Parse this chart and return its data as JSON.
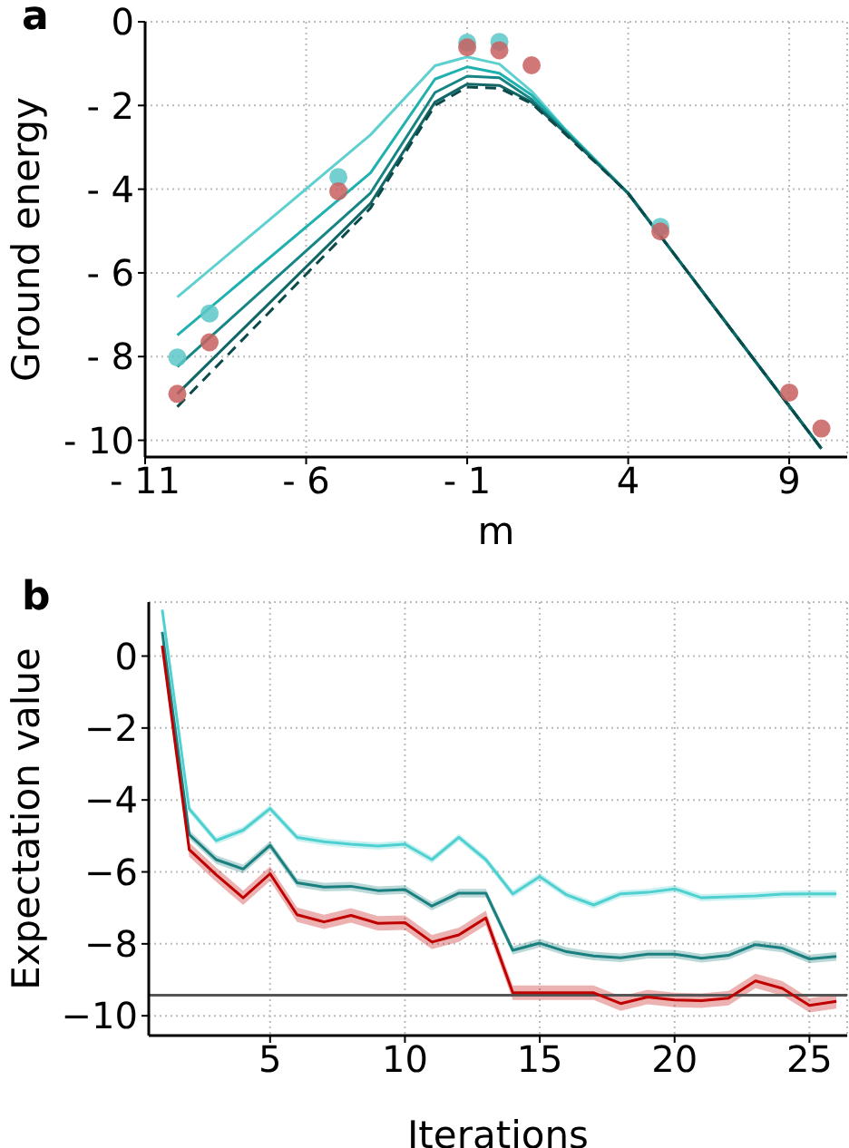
{
  "chart_data": [
    {
      "type": "line",
      "title": "a",
      "xlabel": "m",
      "ylabel": "Ground energy",
      "xlim": [
        -11,
        10.8
      ],
      "ylim": [
        -10.4,
        0
      ],
      "xticks": [
        {
          "value": -11,
          "label": "- 11"
        },
        {
          "value": -6,
          "label": "- 6"
        },
        {
          "value": -1,
          "label": "- 1"
        },
        4,
        9
      ],
      "yticks": [
        0,
        {
          "value": -2,
          "label": "- 2"
        },
        {
          "value": -4,
          "label": "- 4"
        },
        {
          "value": -6,
          "label": "- 6"
        },
        {
          "value": -8,
          "label": "- 8"
        },
        {
          "value": -10,
          "label": "- 10"
        }
      ],
      "grid": true,
      "x": [
        -10,
        -4,
        -2,
        -1,
        0,
        1,
        2,
        4,
        7,
        10
      ],
      "series": [
        {
          "color": "#5fd0d0",
          "values": [
            -6.58,
            -2.7,
            -1.05,
            -0.84,
            -1.01,
            -1.66,
            -2.53,
            -4.09,
            -7.15,
            -10.19
          ]
        },
        {
          "color": "#1fb0b0",
          "values": [
            -7.49,
            -3.61,
            -1.37,
            -1.08,
            -1.23,
            -1.75,
            -2.55,
            -4.1,
            -7.15,
            -10.2
          ]
        },
        {
          "color": "#178585",
          "values": [
            -8.24,
            -4.09,
            -1.69,
            -1.3,
            -1.34,
            -1.85,
            -2.6,
            -4.1,
            -7.15,
            -10.2
          ]
        },
        {
          "color": "#116666",
          "values": [
            -8.89,
            -4.34,
            -1.92,
            -1.49,
            -1.52,
            -1.92,
            -2.62,
            -4.1,
            -7.15,
            -10.2
          ]
        },
        {
          "color": "#0c4a4a",
          "line_style": "dashed",
          "values": [
            -9.2,
            -4.45,
            -2.0,
            -1.56,
            -1.59,
            -1.95,
            -2.65,
            -4.1,
            -7.15,
            -10.2
          ]
        },
        {
          "type": "scatter",
          "marker": "circle",
          "color": "#5cc8c8",
          "x": [
            -10,
            -9,
            -5,
            -1,
            0,
            5
          ],
          "values": [
            -8.02,
            -6.97,
            -3.71,
            -0.5,
            -0.48,
            -4.9
          ]
        },
        {
          "type": "scatter",
          "marker": "circle",
          "color": "#c86060",
          "x": [
            -10,
            -9,
            -5,
            -1,
            0,
            1,
            5,
            9,
            10
          ],
          "values": [
            -8.89,
            -7.66,
            -4.05,
            -0.61,
            -0.68,
            -1.04,
            -5.01,
            -8.86,
            -9.72
          ]
        }
      ]
    },
    {
      "type": "line",
      "title": "b",
      "xlabel": "Iterations",
      "ylabel": "Expectation value",
      "xlim": [
        0.5,
        26.4
      ],
      "ylim": [
        -10.55,
        1.5
      ],
      "xticks": [
        5,
        10,
        15,
        20,
        25
      ],
      "yticks": [
        {
          "value": -10,
          "label": "−10"
        },
        {
          "value": -8,
          "label": "−8"
        },
        {
          "value": -6,
          "label": "−6"
        },
        {
          "value": -4,
          "label": "−4"
        },
        {
          "value": -2,
          "label": "−2"
        },
        0
      ],
      "grid": true,
      "ref_lines": [
        {
          "axis": "y",
          "value": -9.43,
          "color": "#555555"
        }
      ],
      "x": [
        1,
        2,
        3,
        4,
        5,
        6,
        7,
        8,
        9,
        10,
        11,
        12,
        13,
        14,
        15,
        16,
        17,
        18,
        19,
        20,
        21,
        22,
        23,
        24,
        25,
        26
      ],
      "series": [
        {
          "color": "#4fd0d0",
          "values": [
            1.29,
            -4.25,
            -5.13,
            -4.84,
            -4.24,
            -5.04,
            -5.16,
            -5.23,
            -5.28,
            -5.23,
            -5.66,
            -5.04,
            -5.66,
            -6.61,
            -6.13,
            -6.64,
            -6.92,
            -6.61,
            -6.57,
            -6.47,
            -6.72,
            -6.69,
            -6.67,
            -6.62,
            -6.61,
            -6.61
          ],
          "lower": [
            1.19,
            -4.35,
            -5.23,
            -4.94,
            -4.34,
            -5.14,
            -5.26,
            -5.33,
            -5.38,
            -5.33,
            -5.76,
            -5.14,
            -5.76,
            -6.71,
            -6.23,
            -6.74,
            -7.02,
            -6.71,
            -6.67,
            -6.57,
            -6.82,
            -6.79,
            -6.77,
            -6.72,
            -6.71,
            -6.71
          ],
          "upper": [
            1.39,
            -4.15,
            -5.03,
            -4.74,
            -4.14,
            -4.94,
            -5.06,
            -5.13,
            -5.18,
            -5.13,
            -5.56,
            -4.94,
            -5.56,
            -6.51,
            -6.03,
            -6.54,
            -6.82,
            -6.51,
            -6.47,
            -6.37,
            -6.62,
            -6.59,
            -6.57,
            -6.52,
            -6.51,
            -6.51
          ]
        },
        {
          "color": "#1a7f7f",
          "values": [
            0.67,
            -4.96,
            -5.66,
            -5.92,
            -5.26,
            -6.3,
            -6.42,
            -6.4,
            -6.52,
            -6.49,
            -6.95,
            -6.59,
            -6.59,
            -8.18,
            -7.98,
            -8.22,
            -8.34,
            -8.39,
            -8.29,
            -8.29,
            -8.4,
            -8.32,
            -8.02,
            -8.12,
            -8.42,
            -8.35
          ],
          "lower": [
            0.55,
            -5.08,
            -5.78,
            -6.04,
            -5.38,
            -6.42,
            -6.54,
            -6.52,
            -6.64,
            -6.61,
            -7.07,
            -6.71,
            -6.71,
            -8.3,
            -8.1,
            -8.34,
            -8.46,
            -8.51,
            -8.41,
            -8.41,
            -8.52,
            -8.44,
            -8.14,
            -8.24,
            -8.54,
            -8.47
          ],
          "upper": [
            0.79,
            -4.84,
            -5.54,
            -5.8,
            -5.14,
            -6.18,
            -6.3,
            -6.28,
            -6.4,
            -6.37,
            -6.83,
            -6.47,
            -6.47,
            -8.06,
            -7.86,
            -8.1,
            -8.22,
            -8.27,
            -8.17,
            -8.17,
            -8.28,
            -8.2,
            -7.9,
            -8.0,
            -8.3,
            -8.23
          ]
        },
        {
          "color": "#c00000",
          "values": [
            0.29,
            -5.38,
            -6.08,
            -6.72,
            -6.05,
            -7.19,
            -7.39,
            -7.21,
            -7.43,
            -7.41,
            -7.95,
            -7.75,
            -7.28,
            -9.36,
            -9.36,
            -9.36,
            -9.36,
            -9.66,
            -9.48,
            -9.56,
            -9.58,
            -9.51,
            -9.03,
            -9.24,
            -9.71,
            -9.6
          ],
          "lower": [
            0.09,
            -5.58,
            -6.28,
            -6.92,
            -6.25,
            -7.39,
            -7.59,
            -7.41,
            -7.63,
            -7.61,
            -8.15,
            -7.95,
            -7.48,
            -9.56,
            -9.56,
            -9.56,
            -9.56,
            -9.86,
            -9.68,
            -9.76,
            -9.78,
            -9.71,
            -9.23,
            -9.44,
            -9.91,
            -9.8
          ],
          "upper": [
            0.49,
            -5.18,
            -5.88,
            -6.52,
            -5.85,
            -6.99,
            -7.19,
            -7.01,
            -7.23,
            -7.21,
            -7.75,
            -7.55,
            -7.08,
            -9.16,
            -9.16,
            -9.16,
            -9.16,
            -9.46,
            -9.28,
            -9.36,
            -9.38,
            -9.31,
            -8.83,
            -9.04,
            -9.51,
            -9.4
          ]
        }
      ]
    }
  ]
}
